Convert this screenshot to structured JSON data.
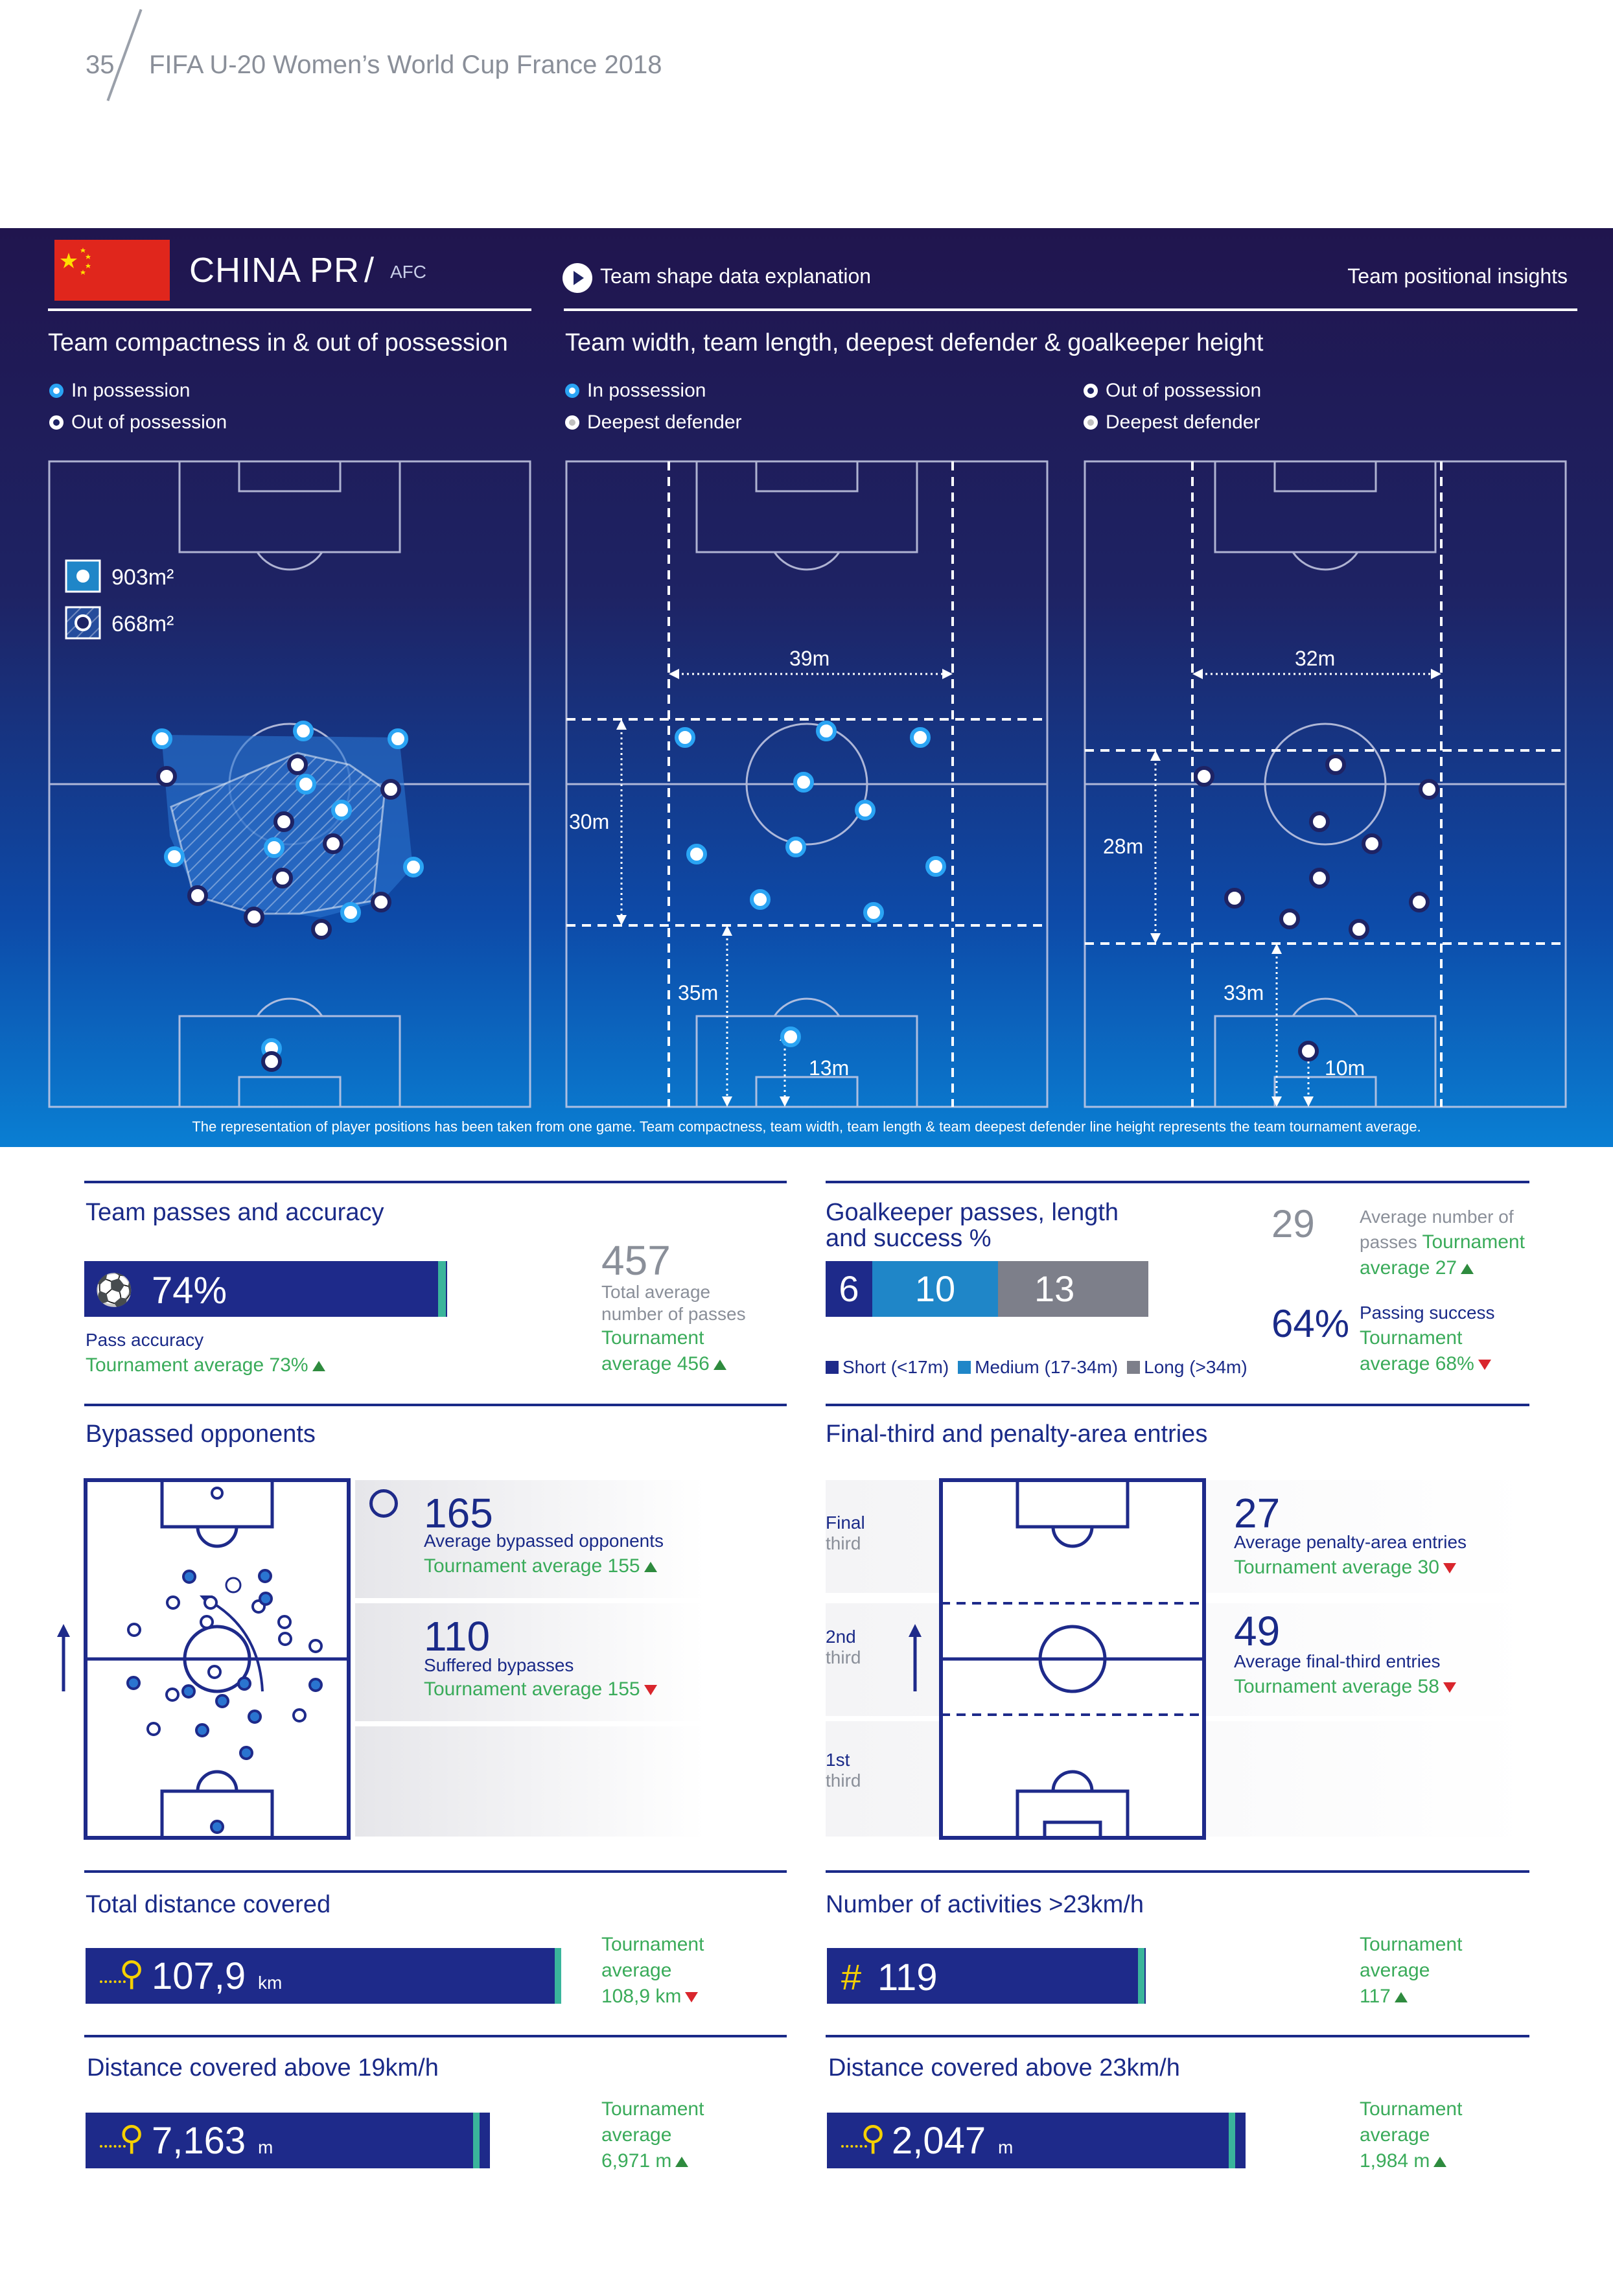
{
  "page": {
    "number": "35",
    "title": "FIFA U-20 Women’s World Cup France 2018"
  },
  "team": {
    "name": "CHINA PR",
    "separator": "/",
    "confederation": "AFC"
  },
  "links": {
    "team_shape": "Team shape data explanation",
    "positional_insights": "Team positional insights"
  },
  "compactness": {
    "title": "Team compactness in & out of possession",
    "legend_in": "In possession",
    "legend_out": "Out of possession",
    "area_in": "903m²",
    "area_out": "668m²"
  },
  "width_length": {
    "title": "Team width, team length, deepest defender & goalkeeper height",
    "in_possession": {
      "legend_team": "In possession",
      "legend_def": "Deepest defender",
      "width": "39m",
      "length": "30m",
      "defender_height": "35m",
      "gk_height": "13m"
    },
    "out_possession": {
      "legend_team": "Out of possession",
      "legend_def": "Deepest defender",
      "width": "32m",
      "length": "28m",
      "defender_height": "33m",
      "gk_height": "10m"
    }
  },
  "footnote": "The representation of player positions has been taken from one game. Team compactness, team width, team length & team deepest defender line height represents the team tournament average.",
  "passes": {
    "title": "Team passes and accuracy",
    "accuracy": "74%",
    "accuracy_label": "Pass accuracy",
    "accuracy_avg": "Tournament average 73%",
    "total": "457",
    "total_label_1": "Total average",
    "total_label_2": "number of passes",
    "total_avg_1": "Tournament",
    "total_avg_2": "average 456"
  },
  "gk_passes": {
    "title_1": "Goalkeeper passes, length",
    "title_2": "and success %",
    "short": "6",
    "medium": "10",
    "long": "13",
    "legend_short": "Short (<17m)",
    "legend_medium": "Medium (17-34m)",
    "legend_long": "Long (>34m)",
    "avg_number": "29",
    "avg_number_label_1": "Average number of",
    "avg_number_label_2a": "passes ",
    "avg_number_label_2b": "Tournament",
    "avg_number_label_3": "average 27",
    "success": "64%",
    "success_label": "Passing success",
    "success_avg_1": "Tournament",
    "success_avg_2": "average 68%"
  },
  "bypassed": {
    "title": "Bypassed opponents",
    "avg_value": "165",
    "avg_label": "Average bypassed opponents",
    "avg_tourn": "Tournament average 155",
    "suffered_value": "110",
    "suffered_label": "Suffered bypasses",
    "suffered_tourn": "Tournament average 155"
  },
  "entries": {
    "title": "Final-third and penalty-area entries",
    "zone_final_1": "Final",
    "zone_final_2": "third",
    "zone_second_1": "2nd",
    "zone_second_2": "third",
    "zone_first_1": "1st",
    "zone_first_2": "third",
    "penalty_value": "27",
    "penalty_label": "Average penalty-area entries",
    "penalty_tourn": "Tournament average 30",
    "final_value": "49",
    "final_label": "Average final-third entries",
    "final_tourn": "Tournament average 58"
  },
  "distance": {
    "title": "Total distance covered",
    "value": "107,9",
    "unit": "km",
    "tourn_1": "Tournament",
    "tourn_2": "average",
    "tourn_3": "108,9 km",
    "fill": 0.99
  },
  "activities": {
    "title": "Number of activities >23km/h",
    "prefix": "#",
    "value": "119",
    "tourn_1": "Tournament",
    "tourn_2": "average",
    "tourn_3": "117",
    "fill": 1.0
  },
  "dist19": {
    "title": "Distance covered above 19km/h",
    "value": "7,163",
    "unit": "m",
    "tourn_1": "Tournament",
    "tourn_2": "average",
    "tourn_3": "6,971 m",
    "fill": 1.0
  },
  "dist23": {
    "title": "Distance covered above 23km/h",
    "value": "2,047",
    "unit": "m",
    "tourn_1": "Tournament",
    "tourn_2": "average",
    "tourn_3": "1,984 m",
    "fill": 1.0
  },
  "colors": {
    "navy": "#1e2a8a",
    "banner_top": "#20154e",
    "banner_bottom": "#0a7fd3",
    "green": "#3aab5a",
    "teal": "#3ab59b",
    "red": "#d9262d",
    "medium_blue": "#1f86c8",
    "gray": "#7d7f8a"
  }
}
